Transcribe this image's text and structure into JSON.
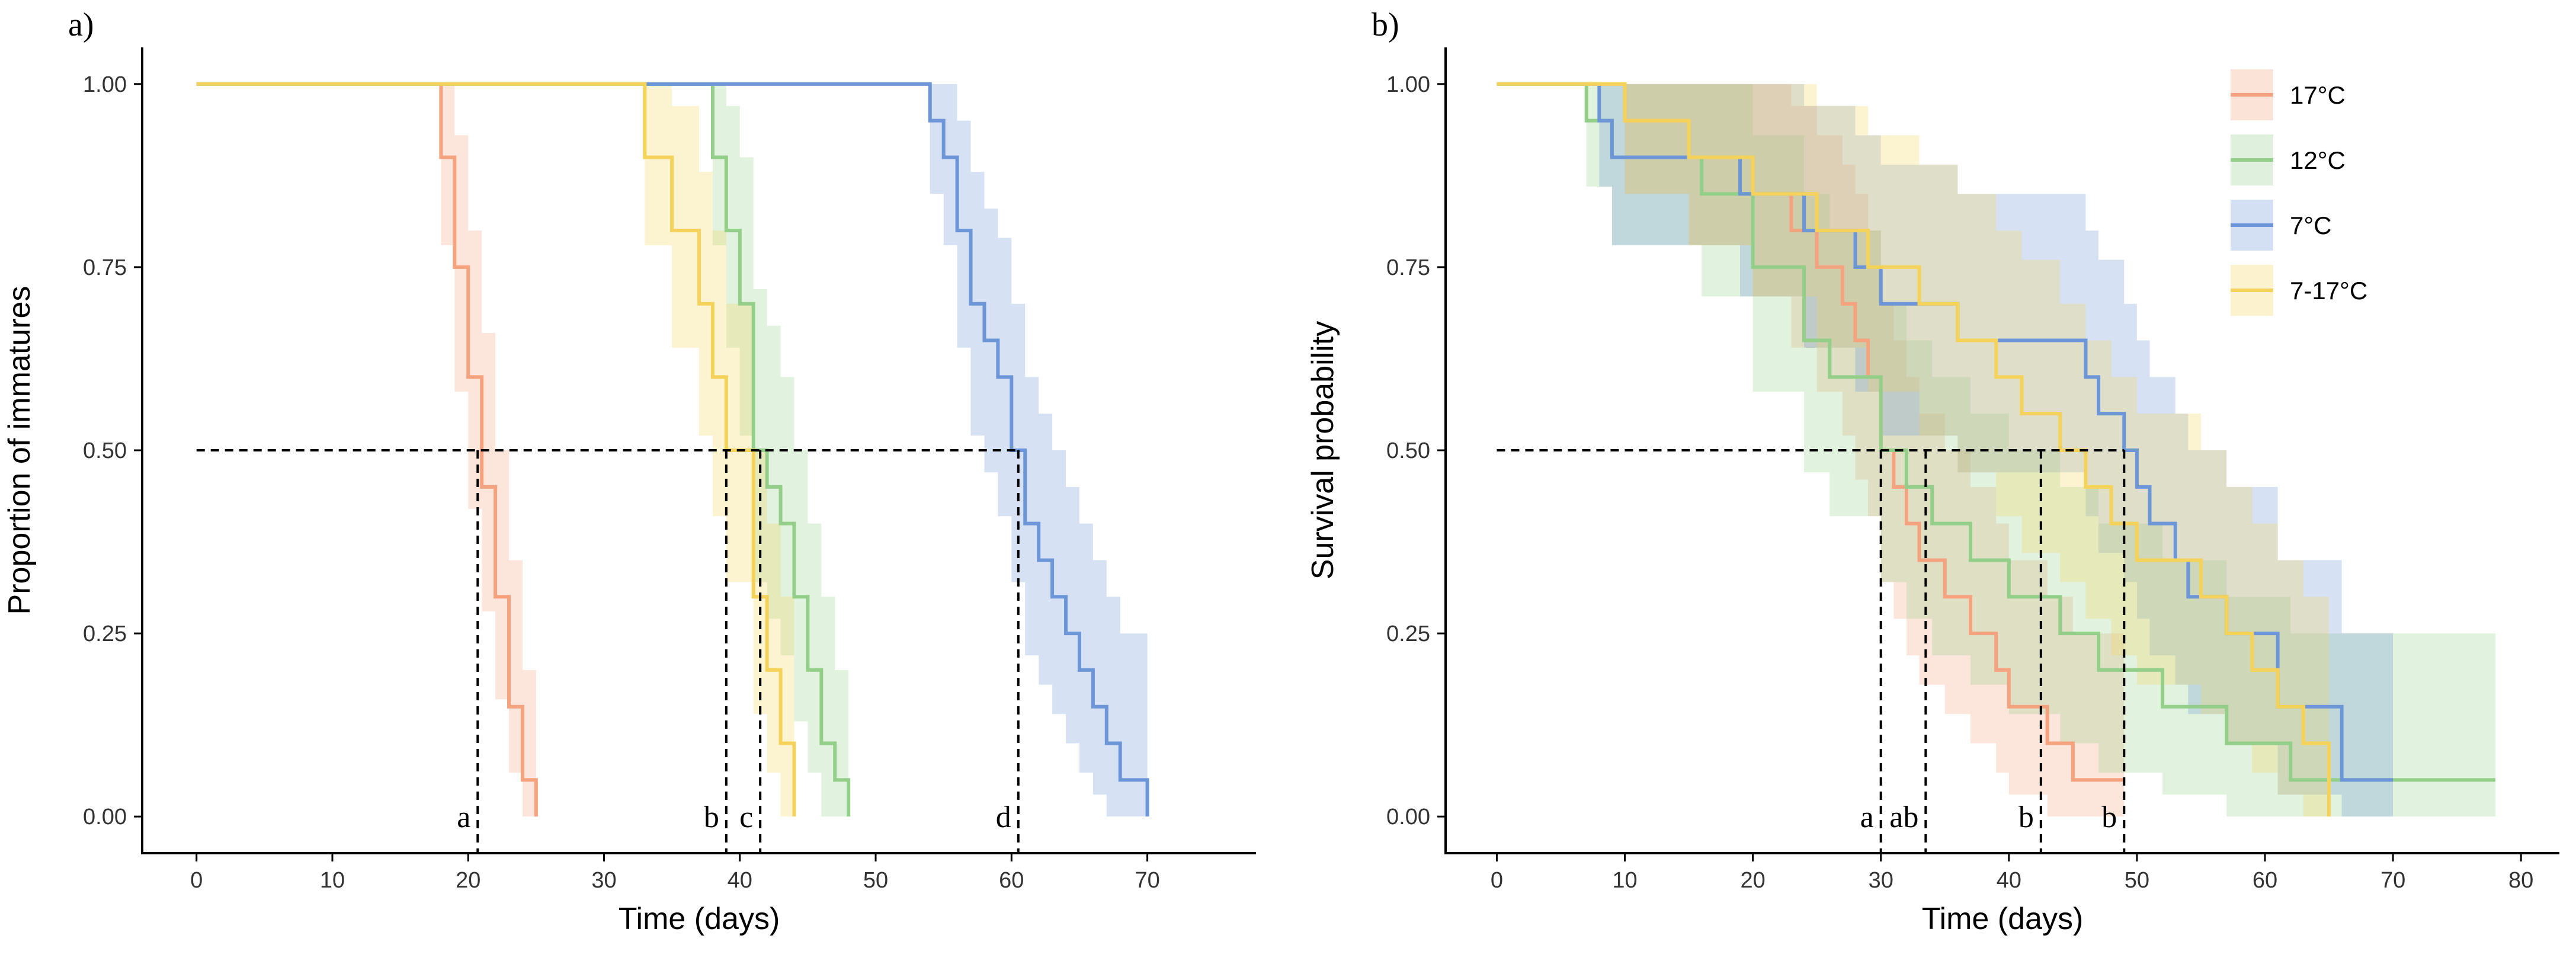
{
  "colors": {
    "17C": "#F5A27E",
    "12C": "#94CF8A",
    "7C": "#6C96D8",
    "7-17C": "#F5D35A",
    "axis": "#000000",
    "reference": "#000000"
  },
  "chart_data": [
    {
      "type": "line",
      "subtype": "step",
      "panel_label": "a)",
      "xlabel": "Time (days)",
      "ylabel": "Proportion of immatures",
      "xlim": [
        -4,
        78
      ],
      "ylim": [
        -0.05,
        1.05
      ],
      "xticks": [
        0,
        10,
        20,
        30,
        40,
        50,
        60,
        70
      ],
      "yticks": [
        0.0,
        0.25,
        0.5,
        0.75,
        1.0
      ],
      "ytick_labels": [
        "0.00",
        "0.25",
        "0.50",
        "0.75",
        "1.00"
      ],
      "median_line": 0.5,
      "series": [
        {
          "name": "17°C",
          "key": "17C",
          "x": [
            0,
            18,
            19,
            20,
            21,
            22,
            23,
            24,
            25
          ],
          "y": [
            1.0,
            0.9,
            0.75,
            0.6,
            0.45,
            0.3,
            0.15,
            0.05,
            0.0
          ],
          "lower": [
            1.0,
            0.78,
            0.58,
            0.42,
            0.28,
            0.16,
            0.06,
            0.0,
            0.0
          ],
          "upper": [
            1.0,
            1.0,
            0.93,
            0.8,
            0.66,
            0.5,
            0.35,
            0.2,
            0.0
          ]
        },
        {
          "name": "12°C",
          "key": "12C",
          "x": [
            0,
            38,
            39,
            40,
            41,
            42,
            43,
            44,
            45,
            46,
            47,
            48
          ],
          "y": [
            1.0,
            0.9,
            0.8,
            0.7,
            0.5,
            0.45,
            0.4,
            0.3,
            0.2,
            0.1,
            0.05,
            0.0
          ],
          "lower": [
            1.0,
            0.78,
            0.64,
            0.52,
            0.32,
            0.27,
            0.22,
            0.13,
            0.06,
            0.0,
            0.0,
            0.0
          ],
          "upper": [
            1.0,
            1.0,
            0.97,
            0.9,
            0.72,
            0.67,
            0.6,
            0.5,
            0.4,
            0.3,
            0.2,
            0.0
          ]
        },
        {
          "name": "7°C",
          "key": "7C",
          "x": [
            0,
            54,
            55,
            56,
            57,
            58,
            59,
            60,
            61,
            62,
            63,
            64,
            65,
            66,
            67,
            68,
            69,
            70
          ],
          "y": [
            1.0,
            0.95,
            0.9,
            0.8,
            0.7,
            0.65,
            0.6,
            0.5,
            0.4,
            0.35,
            0.3,
            0.25,
            0.2,
            0.15,
            0.1,
            0.05,
            0.05,
            0.0
          ],
          "lower": [
            1.0,
            0.85,
            0.78,
            0.64,
            0.52,
            0.47,
            0.41,
            0.32,
            0.22,
            0.18,
            0.14,
            0.1,
            0.06,
            0.03,
            0.0,
            0.0,
            0.0,
            0.0
          ],
          "upper": [
            1.0,
            1.0,
            1.0,
            0.95,
            0.88,
            0.83,
            0.79,
            0.7,
            0.6,
            0.55,
            0.5,
            0.45,
            0.4,
            0.35,
            0.3,
            0.25,
            0.25,
            0.0
          ]
        },
        {
          "name": "7-17°C",
          "key": "7-17C",
          "x": [
            0,
            33,
            35,
            37,
            38,
            39,
            41,
            42,
            43,
            44
          ],
          "y": [
            1.0,
            0.9,
            0.8,
            0.7,
            0.6,
            0.5,
            0.3,
            0.2,
            0.1,
            0.0
          ],
          "lower": [
            1.0,
            0.78,
            0.64,
            0.52,
            0.41,
            0.32,
            0.14,
            0.06,
            0.0,
            0.0
          ],
          "upper": [
            1.0,
            1.0,
            0.97,
            0.88,
            0.8,
            0.7,
            0.5,
            0.4,
            0.3,
            0.0
          ]
        }
      ],
      "medians": [
        {
          "x": 20.7,
          "label": "a"
        },
        {
          "x": 39.0,
          "label": "b"
        },
        {
          "x": 41.5,
          "label": "c"
        },
        {
          "x": 60.5,
          "label": "d"
        }
      ]
    },
    {
      "type": "line",
      "subtype": "step",
      "panel_label": "b)",
      "xlabel": "Time (days)",
      "ylabel": "Survival probability",
      "xlim": [
        -4,
        83
      ],
      "ylim": [
        -0.05,
        1.05
      ],
      "xticks": [
        0,
        10,
        20,
        30,
        40,
        50,
        60,
        70,
        80
      ],
      "yticks": [
        0.0,
        0.25,
        0.5,
        0.75,
        1.0
      ],
      "ytick_labels": [
        "0.00",
        "0.25",
        "0.50",
        "0.75",
        "1.00"
      ],
      "median_line": 0.5,
      "legend_position": "top-right",
      "series": [
        {
          "name": "17°C",
          "key": "17C",
          "x": [
            0,
            10,
            15,
            20,
            23,
            25,
            27,
            28,
            29,
            30,
            31,
            32,
            33,
            35,
            37,
            39,
            40,
            43,
            45,
            48,
            49
          ],
          "y": [
            1.0,
            0.95,
            0.9,
            0.85,
            0.8,
            0.75,
            0.7,
            0.65,
            0.6,
            0.5,
            0.45,
            0.4,
            0.35,
            0.3,
            0.25,
            0.2,
            0.15,
            0.1,
            0.05,
            0.05,
            0.05
          ],
          "lower": [
            1.0,
            0.85,
            0.78,
            0.71,
            0.64,
            0.58,
            0.52,
            0.46,
            0.41,
            0.32,
            0.27,
            0.22,
            0.18,
            0.14,
            0.1,
            0.06,
            0.03,
            0.0,
            0.0,
            0.0,
            0.0
          ],
          "upper": [
            1.0,
            1.0,
            1.0,
            1.0,
            0.97,
            0.93,
            0.89,
            0.85,
            0.8,
            0.7,
            0.65,
            0.6,
            0.55,
            0.5,
            0.45,
            0.4,
            0.35,
            0.3,
            0.25,
            0.25,
            0.25
          ]
        },
        {
          "name": "12°C",
          "key": "12C",
          "x": [
            0,
            7,
            9,
            16,
            20,
            24,
            26,
            30,
            32,
            34,
            37,
            40,
            44,
            47,
            52,
            57,
            62,
            78
          ],
          "y": [
            1.0,
            0.95,
            0.9,
            0.85,
            0.75,
            0.65,
            0.6,
            0.5,
            0.45,
            0.4,
            0.35,
            0.3,
            0.25,
            0.2,
            0.15,
            0.1,
            0.05,
            0.05
          ],
          "lower": [
            1.0,
            0.86,
            0.78,
            0.71,
            0.58,
            0.47,
            0.41,
            0.32,
            0.27,
            0.22,
            0.18,
            0.14,
            0.1,
            0.06,
            0.03,
            0.0,
            0.0,
            0.0
          ],
          "upper": [
            1.0,
            1.0,
            1.0,
            1.0,
            0.93,
            0.85,
            0.8,
            0.7,
            0.65,
            0.6,
            0.55,
            0.5,
            0.45,
            0.4,
            0.35,
            0.3,
            0.25,
            0.25
          ]
        },
        {
          "name": "7°C",
          "key": "7C",
          "x": [
            0,
            8,
            9,
            19,
            24,
            28,
            30,
            36,
            46,
            47,
            49,
            50,
            51,
            53,
            54,
            57,
            61,
            66,
            70
          ],
          "y": [
            1.0,
            0.95,
            0.9,
            0.85,
            0.8,
            0.75,
            0.7,
            0.65,
            0.6,
            0.55,
            0.5,
            0.45,
            0.4,
            0.35,
            0.3,
            0.25,
            0.15,
            0.05,
            0.05
          ],
          "lower": [
            1.0,
            0.86,
            0.78,
            0.71,
            0.64,
            0.58,
            0.52,
            0.47,
            0.41,
            0.36,
            0.32,
            0.27,
            0.22,
            0.18,
            0.14,
            0.1,
            0.03,
            0.0,
            0.0
          ],
          "upper": [
            1.0,
            1.0,
            1.0,
            1.0,
            0.97,
            0.93,
            0.89,
            0.85,
            0.8,
            0.76,
            0.7,
            0.65,
            0.6,
            0.55,
            0.5,
            0.45,
            0.35,
            0.25,
            0.25
          ]
        },
        {
          "name": "7-17°C",
          "key": "7-17C",
          "x": [
            0,
            10,
            15,
            20,
            25,
            29,
            33,
            36,
            39,
            41,
            44,
            46,
            48,
            50,
            55,
            57,
            59,
            61,
            63,
            65
          ],
          "y": [
            1.0,
            0.95,
            0.9,
            0.85,
            0.8,
            0.75,
            0.7,
            0.65,
            0.6,
            0.55,
            0.5,
            0.45,
            0.4,
            0.35,
            0.3,
            0.25,
            0.2,
            0.15,
            0.1,
            0.0
          ],
          "lower": [
            1.0,
            0.85,
            0.78,
            0.71,
            0.64,
            0.58,
            0.52,
            0.47,
            0.41,
            0.36,
            0.32,
            0.27,
            0.22,
            0.18,
            0.14,
            0.1,
            0.06,
            0.03,
            0.0,
            0.0
          ],
          "upper": [
            1.0,
            1.0,
            1.0,
            1.0,
            0.97,
            0.93,
            0.89,
            0.85,
            0.8,
            0.76,
            0.7,
            0.65,
            0.6,
            0.55,
            0.5,
            0.45,
            0.4,
            0.35,
            0.3,
            0.0
          ]
        }
      ],
      "medians": [
        {
          "x": 30.0,
          "label": "a"
        },
        {
          "x": 33.5,
          "label": "ab"
        },
        {
          "x": 42.5,
          "label": "b"
        },
        {
          "x": 49.0,
          "label": "b"
        }
      ]
    }
  ]
}
